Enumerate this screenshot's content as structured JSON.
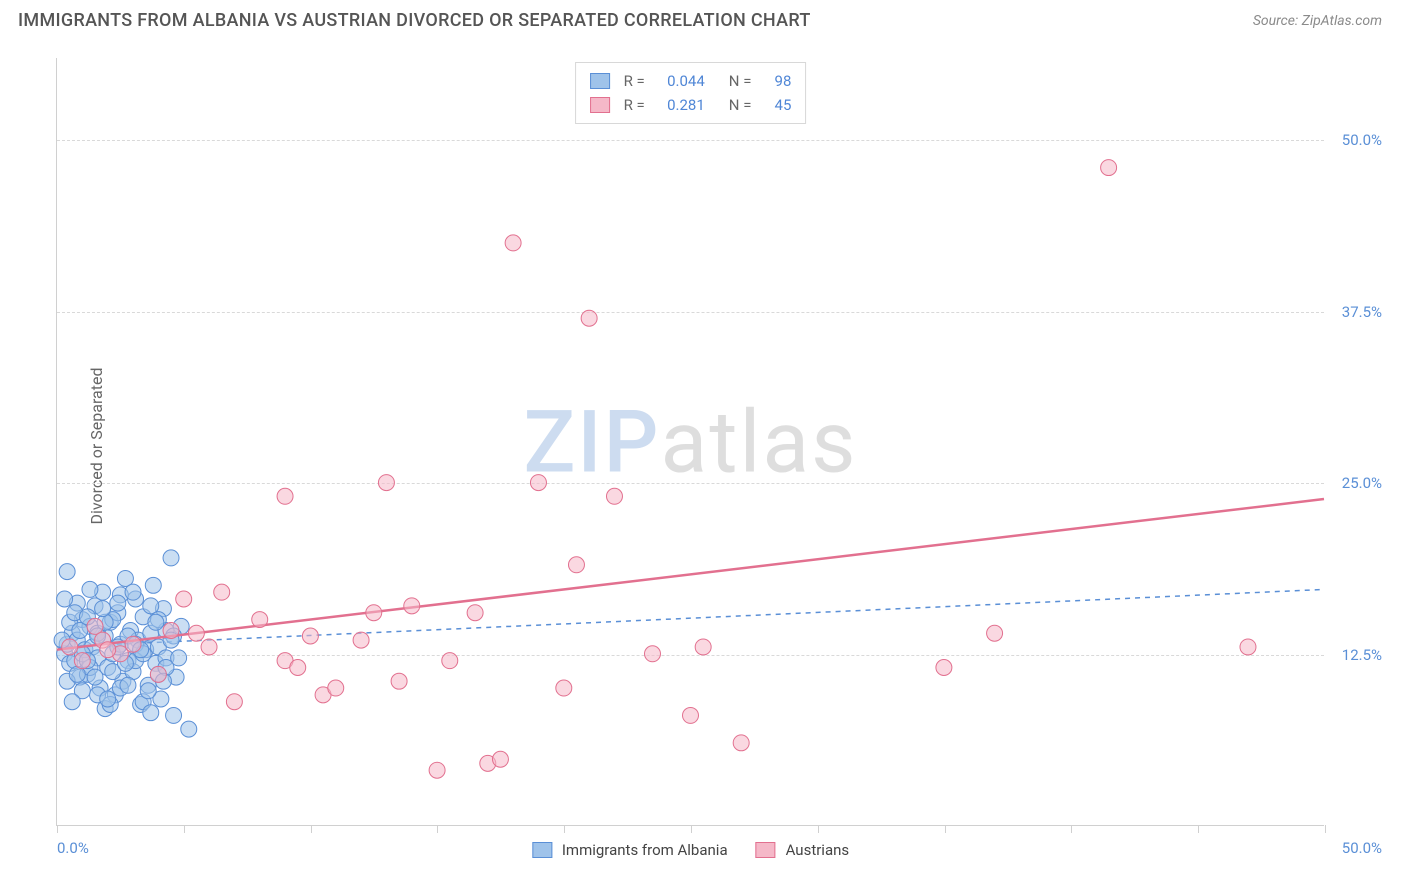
{
  "title": "IMMIGRANTS FROM ALBANIA VS AUSTRIAN DIVORCED OR SEPARATED CORRELATION CHART",
  "source": "Source: ZipAtlas.com",
  "y_axis_label": "Divorced or Separated",
  "watermark": {
    "a": "ZIP",
    "b": "atlas"
  },
  "chart": {
    "type": "scatter",
    "background_color": "#ffffff",
    "grid_color": "#d9d9d9",
    "axis_color": "#d0d0d0",
    "xlim": [
      0,
      50
    ],
    "ylim": [
      0,
      56
    ],
    "x_min_label": "0.0%",
    "x_max_label": "50.0%",
    "x_ticks": [
      0,
      5,
      10,
      15,
      20,
      25,
      30,
      35,
      40,
      45,
      50
    ],
    "y_gridlines": [
      {
        "value": 12.5,
        "label": "12.5%"
      },
      {
        "value": 25.0,
        "label": "25.0%"
      },
      {
        "value": 37.5,
        "label": "37.5%"
      },
      {
        "value": 50.0,
        "label": "50.0%"
      }
    ],
    "marker_radius": 8,
    "marker_opacity": 0.55,
    "series": [
      {
        "id": "albania",
        "label": "Immigrants from Albania",
        "fill": "#9fc3ea",
        "stroke": "#5a8fd6",
        "r_value": "0.044",
        "n_value": "98",
        "trend": {
          "y_at_x0": 13.0,
          "y_at_xmax": 17.2,
          "dash": "5,5",
          "width": 1.5
        },
        "points": [
          [
            0.3,
            12.5
          ],
          [
            0.4,
            13.2
          ],
          [
            0.5,
            11.8
          ],
          [
            0.6,
            14.0
          ],
          [
            0.7,
            12.0
          ],
          [
            0.8,
            13.5
          ],
          [
            0.9,
            10.8
          ],
          [
            1.0,
            15.0
          ],
          [
            1.1,
            12.8
          ],
          [
            1.2,
            11.0
          ],
          [
            1.3,
            14.5
          ],
          [
            1.4,
            13.0
          ],
          [
            1.5,
            16.0
          ],
          [
            1.6,
            12.2
          ],
          [
            1.7,
            10.0
          ],
          [
            1.8,
            17.0
          ],
          [
            1.9,
            13.8
          ],
          [
            2.0,
            11.5
          ],
          [
            2.1,
            14.8
          ],
          [
            2.2,
            12.5
          ],
          [
            2.3,
            9.5
          ],
          [
            2.4,
            15.5
          ],
          [
            2.5,
            13.2
          ],
          [
            2.6,
            10.5
          ],
          [
            2.7,
            18.0
          ],
          [
            2.8,
            12.0
          ],
          [
            2.9,
            14.2
          ],
          [
            3.0,
            11.2
          ],
          [
            3.1,
            16.5
          ],
          [
            3.2,
            13.5
          ],
          [
            3.3,
            8.8
          ],
          [
            3.4,
            15.2
          ],
          [
            3.5,
            12.8
          ],
          [
            3.6,
            10.2
          ],
          [
            3.7,
            14.0
          ],
          [
            3.8,
            17.5
          ],
          [
            3.9,
            11.8
          ],
          [
            4.0,
            13.0
          ],
          [
            4.1,
            9.2
          ],
          [
            4.2,
            15.8
          ],
          [
            4.3,
            12.2
          ],
          [
            4.5,
            19.5
          ],
          [
            4.7,
            10.8
          ],
          [
            4.9,
            14.5
          ],
          [
            5.2,
            7.0
          ],
          [
            0.5,
            14.8
          ],
          [
            0.8,
            16.2
          ],
          [
            1.0,
            9.8
          ],
          [
            1.3,
            11.5
          ],
          [
            1.6,
            14.0
          ],
          [
            1.9,
            8.5
          ],
          [
            2.2,
            15.0
          ],
          [
            2.5,
            10.0
          ],
          [
            2.8,
            13.8
          ],
          [
            3.1,
            12.0
          ],
          [
            3.4,
            9.0
          ],
          [
            3.7,
            16.0
          ],
          [
            4.0,
            11.0
          ],
          [
            4.3,
            14.2
          ],
          [
            4.6,
            8.0
          ],
          [
            0.2,
            13.5
          ],
          [
            0.4,
            10.5
          ],
          [
            0.7,
            15.5
          ],
          [
            1.0,
            12.5
          ],
          [
            1.3,
            17.2
          ],
          [
            1.6,
            9.5
          ],
          [
            1.9,
            14.8
          ],
          [
            2.2,
            11.2
          ],
          [
            2.5,
            16.8
          ],
          [
            2.8,
            10.2
          ],
          [
            3.1,
            13.2
          ],
          [
            3.4,
            12.5
          ],
          [
            3.7,
            8.2
          ],
          [
            4.0,
            15.0
          ],
          [
            4.3,
            11.5
          ],
          [
            4.6,
            13.8
          ],
          [
            0.3,
            16.5
          ],
          [
            0.6,
            9.0
          ],
          [
            0.9,
            14.2
          ],
          [
            1.2,
            12.0
          ],
          [
            1.5,
            10.8
          ],
          [
            1.8,
            15.8
          ],
          [
            2.1,
            8.8
          ],
          [
            2.4,
            13.0
          ],
          [
            2.7,
            11.8
          ],
          [
            3.0,
            17.0
          ],
          [
            3.3,
            12.8
          ],
          [
            3.6,
            9.8
          ],
          [
            3.9,
            14.8
          ],
          [
            4.2,
            10.5
          ],
          [
            4.5,
            13.5
          ],
          [
            4.8,
            12.2
          ],
          [
            0.4,
            18.5
          ],
          [
            0.8,
            11.0
          ],
          [
            1.2,
            15.2
          ],
          [
            1.6,
            13.8
          ],
          [
            2.0,
            9.2
          ],
          [
            2.4,
            16.2
          ]
        ]
      },
      {
        "id": "austrians",
        "label": "Austrians",
        "fill": "#f5b8c8",
        "stroke": "#e2708f",
        "r_value": "0.281",
        "n_value": "45",
        "trend": {
          "y_at_x0": 12.8,
          "y_at_xmax": 23.8,
          "dash": "none",
          "width": 2.5
        },
        "points": [
          [
            0.5,
            13.0
          ],
          [
            1.0,
            12.0
          ],
          [
            1.5,
            14.5
          ],
          [
            1.8,
            13.5
          ],
          [
            2.5,
            12.5
          ],
          [
            3.0,
            13.2
          ],
          [
            4.0,
            11.0
          ],
          [
            5.0,
            16.5
          ],
          [
            5.5,
            14.0
          ],
          [
            6.0,
            13.0
          ],
          [
            7.0,
            9.0
          ],
          [
            8.0,
            15.0
          ],
          [
            9.0,
            12.0
          ],
          [
            9.0,
            24.0
          ],
          [
            9.5,
            11.5
          ],
          [
            10.5,
            9.5
          ],
          [
            11.0,
            10.0
          ],
          [
            12.0,
            13.5
          ],
          [
            12.5,
            15.5
          ],
          [
            13.0,
            25.0
          ],
          [
            13.5,
            10.5
          ],
          [
            14.0,
            16.0
          ],
          [
            15.0,
            4.0
          ],
          [
            15.5,
            12.0
          ],
          [
            16.5,
            15.5
          ],
          [
            17.0,
            4.5
          ],
          [
            17.5,
            4.8
          ],
          [
            18.0,
            42.5
          ],
          [
            19.0,
            25.0
          ],
          [
            20.0,
            10.0
          ],
          [
            20.5,
            19.0
          ],
          [
            21.0,
            37.0
          ],
          [
            22.0,
            24.0
          ],
          [
            23.5,
            12.5
          ],
          [
            25.0,
            8.0
          ],
          [
            25.5,
            13.0
          ],
          [
            27.0,
            6.0
          ],
          [
            35.0,
            11.5
          ],
          [
            37.0,
            14.0
          ],
          [
            41.5,
            48.0
          ],
          [
            47.0,
            13.0
          ],
          [
            2.0,
            12.8
          ],
          [
            4.5,
            14.2
          ],
          [
            6.5,
            17.0
          ],
          [
            10.0,
            13.8
          ]
        ]
      }
    ]
  },
  "legend_top_labels": {
    "r": "R =",
    "n": "N ="
  }
}
